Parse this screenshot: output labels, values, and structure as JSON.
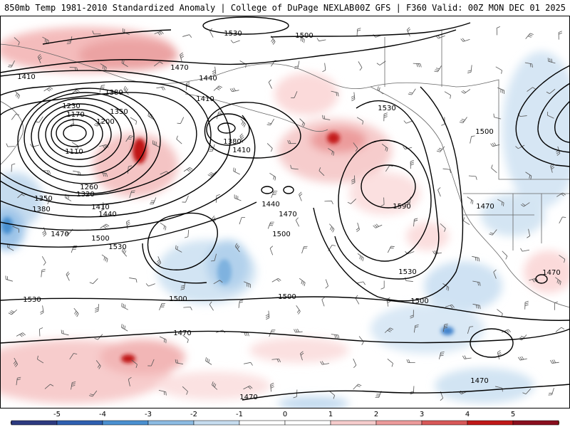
{
  "header": {
    "left_title": "850mb Temp 1981-2010 Standardized Anomaly | College of DuPage NEXLAB",
    "right_title": "00Z GFS | F360 Valid: 00Z MON DEC 01 2025"
  },
  "map": {
    "region": "North Pacific Ocean and western North America",
    "variable_shaded": "850mb temperature standardized anomaly",
    "contour_variable": "850mb geopotential height",
    "contour_labels": [
      {
        "id": "h1530a",
        "text": "1530"
      },
      {
        "id": "h1500a",
        "text": "1500"
      },
      {
        "id": "h1470a",
        "text": "1470"
      },
      {
        "id": "h1440a",
        "text": "1440"
      },
      {
        "id": "h1410a",
        "text": "1410"
      },
      {
        "id": "h1410b",
        "text": "1410"
      },
      {
        "id": "h1380a",
        "text": "1380"
      },
      {
        "id": "h1230",
        "text": "1230"
      },
      {
        "id": "h1170",
        "text": "1170"
      },
      {
        "id": "h1350a",
        "text": "1350"
      },
      {
        "id": "h1200",
        "text": "1200"
      },
      {
        "id": "h1110",
        "text": "1110"
      },
      {
        "id": "h1380b",
        "text": "1380"
      },
      {
        "id": "h1410c",
        "text": "1410"
      },
      {
        "id": "h1530b",
        "text": "1530"
      },
      {
        "id": "h1500b",
        "text": "1500"
      },
      {
        "id": "h1260",
        "text": "1260"
      },
      {
        "id": "h1320",
        "text": "1320"
      },
      {
        "id": "h1350b",
        "text": "1350"
      },
      {
        "id": "h1380c",
        "text": "1380"
      },
      {
        "id": "h1410d",
        "text": "1410"
      },
      {
        "id": "h1440b",
        "text": "1440"
      },
      {
        "id": "h1440c",
        "text": "1440"
      },
      {
        "id": "h1470b",
        "text": "1470"
      },
      {
        "id": "h1590",
        "text": "1590"
      },
      {
        "id": "h1470c",
        "text": "1470"
      },
      {
        "id": "h1500c",
        "text": "1500"
      },
      {
        "id": "h1500d",
        "text": "1500"
      },
      {
        "id": "h1530c",
        "text": "1530"
      },
      {
        "id": "h1470d",
        "text": "1470"
      },
      {
        "id": "h1530d",
        "text": "1530"
      },
      {
        "id": "h1530e",
        "text": "1530"
      },
      {
        "id": "h1500e",
        "text": "1500"
      },
      {
        "id": "h1500f",
        "text": "1500"
      },
      {
        "id": "h1500g",
        "text": "1500"
      },
      {
        "id": "h1470e",
        "text": "1470"
      },
      {
        "id": "h1470f",
        "text": "1470"
      },
      {
        "id": "h1470g",
        "text": "1470"
      },
      {
        "id": "h1470h",
        "text": "1470"
      }
    ]
  },
  "colorbar": {
    "ticks": [
      "-5",
      "-4",
      "-3",
      "-2",
      "-1",
      "0",
      "1",
      "2",
      "3",
      "4",
      "5"
    ],
    "colors": [
      "#6a3fa0",
      "#2d3a80",
      "#2f5fb0",
      "#4a90d0",
      "#8cbbe2",
      "#c6dcef",
      "#ffffff",
      "#ffffff",
      "#f6cccc",
      "#ec9a9a",
      "#d85858",
      "#c01818",
      "#8a0f1e",
      "#f2c200"
    ]
  }
}
